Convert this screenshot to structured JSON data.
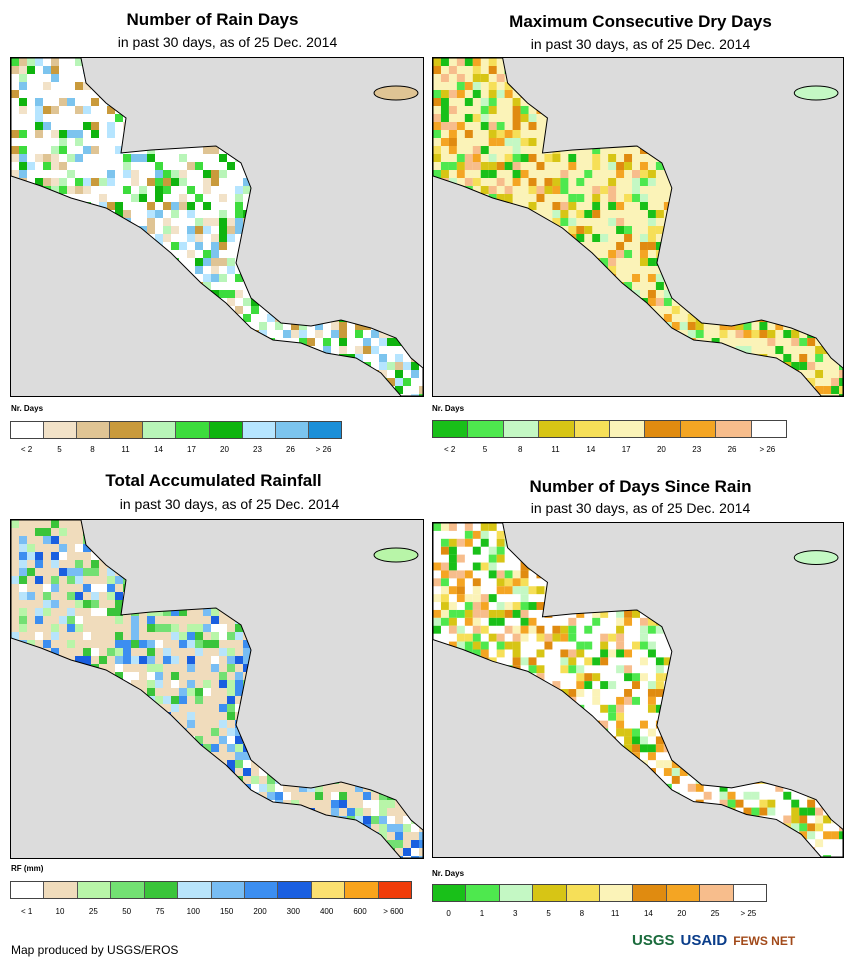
{
  "panels": [
    {
      "id": "rain_days",
      "title": "Number of Rain Days",
      "subtitle": "in past 30 days, as of 25 Dec. 2014",
      "legend_title": "Nr. Days",
      "legend_colors": [
        "#ffffff",
        "#f2e2c8",
        "#dfc494",
        "#c99a3c",
        "#b8f5b8",
        "#3ddc3d",
        "#0fb40f",
        "#b6e5ff",
        "#7cc4ee",
        "#1b8fd8"
      ],
      "legend_ticks": [
        "< 2",
        "5",
        "8",
        "11",
        "14",
        "17",
        "20",
        "23",
        "26",
        "> 26"
      ],
      "land_color": "#ffffff"
    },
    {
      "id": "max_dry_days",
      "title": "Maximum Consecutive Dry Days",
      "subtitle": "in past 30 days, as of 25 Dec. 2014",
      "legend_title": "Nr. Days",
      "legend_colors": [
        "#19c019",
        "#4ee84e",
        "#c4f8c4",
        "#d7c515",
        "#f6df58",
        "#fbf3b8",
        "#e08b10",
        "#f4a523",
        "#f7bd8c",
        "#ffffff"
      ],
      "legend_ticks": [
        "< 2",
        "5",
        "8",
        "11",
        "14",
        "17",
        "20",
        "23",
        "26",
        "> 26"
      ],
      "land_color": "#fbf3b8"
    },
    {
      "id": "total_rainfall",
      "title": "Total Accumulated Rainfall",
      "subtitle": "in past 30 days, as of 25 Dec. 2014",
      "legend_title": "RF (mm)",
      "legend_colors": [
        "#ffffff",
        "#f0dcbc",
        "#b8f5a8",
        "#73e073",
        "#3ac43a",
        "#b8e4fb",
        "#78bdf4",
        "#3c8ef0",
        "#1a5fe0",
        "#fbe070",
        "#f9a41c",
        "#f03c0a"
      ],
      "legend_ticks": [
        "< 1",
        "10",
        "25",
        "50",
        "75",
        "100",
        "150",
        "200",
        "300",
        "400",
        "600",
        "> 600"
      ],
      "land_color": "#f0dcbc"
    },
    {
      "id": "days_since_rain",
      "title": "Number of Days Since Rain",
      "subtitle": "in past 30 days, as of 25 Dec. 2014",
      "legend_title": "Nr. Days",
      "legend_colors": [
        "#19c019",
        "#4ee84e",
        "#c4f8c4",
        "#d7c515",
        "#f6df58",
        "#fbf3b8",
        "#e08b10",
        "#f4a523",
        "#f7bd8c",
        "#ffffff"
      ],
      "legend_ticks": [
        "0",
        "1",
        "3",
        "5",
        "8",
        "11",
        "14",
        "20",
        "25",
        "> 25"
      ],
      "land_color": "#ffffff"
    }
  ],
  "footer": {
    "credit": "Map produced by USGS/EROS"
  },
  "logos": {
    "usgs": "USGS",
    "usaid": "USAID",
    "fews": "FEWS NET"
  }
}
